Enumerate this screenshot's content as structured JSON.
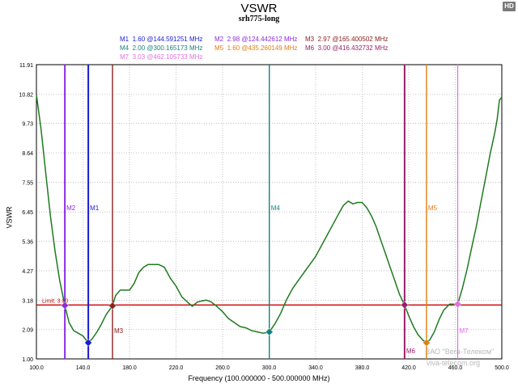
{
  "header": {
    "title": "VSWR",
    "subtitle": "srh775-long",
    "badge": "HD"
  },
  "markers_legend": [
    {
      "id": "M1",
      "text": "1.60 @144.591251 MHz",
      "color": "#1a1ad8"
    },
    {
      "id": "M2",
      "text": "2.98 @124.442612 MHz",
      "color": "#8a2be2"
    },
    {
      "id": "M3",
      "text": "2.97 @165.400502 MHz",
      "color": "#8b2020"
    },
    {
      "id": "M4",
      "text": "2.00 @300.165173 MHz",
      "color": "#17807e"
    },
    {
      "id": "M5",
      "text": "1.60 @435.260149 MHz",
      "color": "#e57c10"
    },
    {
      "id": "M6",
      "text": "3.00 @416.432732 MHz",
      "color": "#9a1f6a"
    },
    {
      "id": "M7",
      "text": "3.03 @462.105733 MHz",
      "color": "#e070e0"
    }
  ],
  "axes": {
    "ylabel": "VSWR",
    "xlabel": "Frequency (100.000000 - 500.000000 MHz)"
  },
  "limit_label": "Limit: 3.00",
  "watermark": {
    "line1": "ЗАО \"Вега-Телеком\"",
    "line2": "viva-telecom.org"
  },
  "colors": {
    "trace": "#1f7a1f",
    "limit": "#cc0000",
    "frame": "#000000"
  },
  "chart_data": {
    "type": "line",
    "title": "VSWR",
    "subtitle": "srh775-long",
    "xlabel": "Frequency (100.000000 - 500.000000 MHz)",
    "ylabel": "VSWR",
    "xlim": [
      100,
      500
    ],
    "ylim": [
      1.0,
      11.91
    ],
    "x_ticks": [
      100,
      140,
      180,
      220,
      260,
      300,
      340,
      380,
      420,
      460,
      500
    ],
    "x_tick_labels": [
      "100.0",
      "140.0",
      "180.0",
      "220.0",
      "260.0",
      "300.0",
      "340.0",
      "380.0",
      "420.0",
      "460.0",
      "500.0"
    ],
    "y_ticks": [
      1.0,
      2.09,
      3.18,
      4.27,
      5.36,
      6.45,
      7.55,
      8.64,
      9.73,
      10.82,
      11.91
    ],
    "y_tick_labels": [
      "1.00",
      "2.09",
      "3.18",
      "4.27",
      "5.36",
      "6.45",
      "7.55",
      "8.64",
      "9.73",
      "10.82",
      "11.91"
    ],
    "limit": 3.0,
    "series": [
      {
        "x": [
          100,
          104,
          108,
          112,
          116,
          120,
          124.4,
          128,
          132,
          136,
          140,
          144.6,
          148,
          152,
          156,
          160,
          165.4,
          168,
          172,
          176,
          180,
          184,
          188,
          192,
          196,
          200,
          205,
          210,
          215,
          220,
          225,
          230,
          234,
          238,
          242,
          246,
          250,
          255,
          260,
          265,
          270,
          275,
          280,
          285,
          290,
          295,
          300.2,
          305,
          310,
          315,
          320,
          325,
          330,
          335,
          340,
          345,
          350,
          355,
          360,
          364,
          368,
          372,
          376,
          380,
          384,
          388,
          392,
          396,
          400,
          404,
          408,
          412,
          416.4,
          420,
          424,
          428,
          432,
          435.3,
          438,
          442,
          446,
          450,
          455,
          462.1,
          466,
          470,
          474,
          478,
          482,
          486,
          490,
          494,
          496,
          498,
          500
        ],
        "y": [
          10.8,
          9.5,
          7.9,
          6.3,
          5.0,
          3.9,
          2.98,
          2.35,
          2.05,
          1.95,
          1.85,
          1.6,
          1.75,
          2.0,
          2.3,
          2.65,
          2.97,
          3.35,
          3.55,
          3.55,
          3.55,
          3.8,
          4.2,
          4.4,
          4.5,
          4.5,
          4.5,
          4.4,
          4.0,
          3.7,
          3.3,
          3.1,
          2.95,
          3.1,
          3.15,
          3.18,
          3.12,
          2.95,
          2.75,
          2.5,
          2.35,
          2.2,
          2.15,
          2.05,
          2.0,
          1.95,
          2.0,
          2.3,
          2.7,
          3.2,
          3.6,
          3.9,
          4.2,
          4.5,
          4.8,
          5.2,
          5.6,
          6.0,
          6.4,
          6.7,
          6.85,
          6.75,
          6.8,
          6.8,
          6.6,
          6.3,
          5.9,
          5.4,
          4.9,
          4.4,
          3.9,
          3.4,
          3.0,
          2.6,
          2.2,
          1.9,
          1.7,
          1.6,
          1.7,
          2.0,
          2.45,
          2.8,
          3.03,
          3.03,
          3.6,
          4.3,
          5.1,
          5.9,
          6.8,
          7.7,
          8.6,
          9.4,
          9.9,
          10.6,
          10.7
        ]
      }
    ],
    "markers": [
      {
        "id": "M1",
        "x": 144.591251,
        "y": 1.6
      },
      {
        "id": "M2",
        "x": 124.442612,
        "y": 2.98
      },
      {
        "id": "M3",
        "x": 165.400502,
        "y": 2.97
      },
      {
        "id": "M4",
        "x": 300.165173,
        "y": 2.0
      },
      {
        "id": "M5",
        "x": 435.260149,
        "y": 1.6
      },
      {
        "id": "M6",
        "x": 416.432732,
        "y": 3.0
      },
      {
        "id": "M7",
        "x": 462.105733,
        "y": 3.03
      }
    ],
    "grid": true
  }
}
